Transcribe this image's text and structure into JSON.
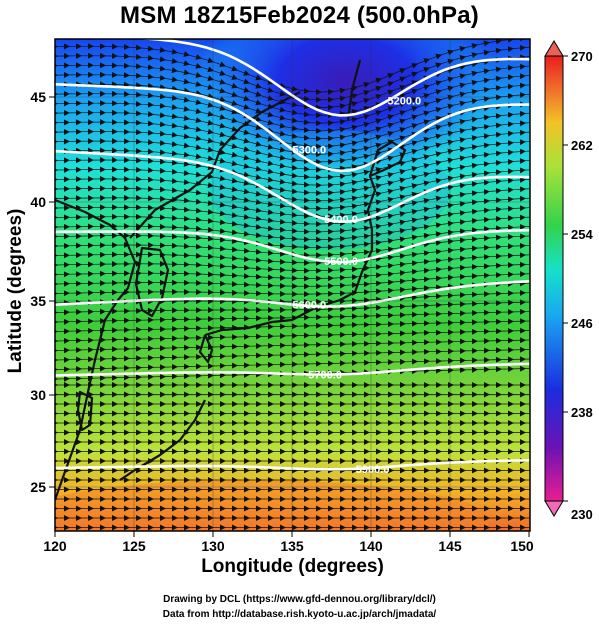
{
  "figure": {
    "title": "MSM 18Z15Feb2024 (500.0hPa)",
    "xlabel": "Longitude (degrees)",
    "ylabel": "Latitude  (degrees)",
    "credit_line1": "Drawing by DCL (https://www.gfd-dennou.org/library/dcl/)",
    "credit_line2": "Data from http://database.rish.kyoto-u.ac.jp/arch/jmadata/"
  },
  "map": {
    "lon_range": [
      120,
      150
    ],
    "lat_range": [
      22.5,
      47.5
    ],
    "x_ticks": [
      "120",
      "125",
      "130",
      "135",
      "140",
      "145",
      "150"
    ],
    "y_ticks": [
      "25",
      "30",
      "35",
      "40",
      "45"
    ],
    "gridlines": true,
    "field": "temperature (K)",
    "vector_field": "wind streamlines (westerly)",
    "contour_field": "geopotential height (m)",
    "contours": [
      {
        "label": "5900.0",
        "lat_at_120": 25.7,
        "lat_at_150": 26.1
      },
      {
        "label": "5700.0",
        "lat_at_120": 30.4,
        "lat_at_150": 31.0
      },
      {
        "label": "5600.0",
        "lat_at_120": 34.0,
        "lat_at_150": 35.2
      },
      {
        "label": "5500.0",
        "lat_at_120": 37.7,
        "lat_at_150": 37.8
      },
      {
        "label": "5400.0",
        "lat_at_120": 41.8,
        "lat_at_150": 40.5
      },
      {
        "label": "5300.0",
        "lat_at_120": 45.2,
        "lat_at_150": 44.2
      },
      {
        "label": "5200.0",
        "lat_at_120": 47.8,
        "lat_at_150": 46.5
      }
    ]
  },
  "colorbar": {
    "min": 230,
    "max": 270,
    "tick_labels": [
      "270",
      "262",
      "254",
      "246",
      "238",
      "230"
    ],
    "colors": [
      "#e91e8f",
      "#6b13b4",
      "#1a2de0",
      "#19a9f0",
      "#16e1c8",
      "#33d24a",
      "#a8e23a",
      "#f2c326",
      "#f06a2a",
      "#e81e1e"
    ]
  }
}
